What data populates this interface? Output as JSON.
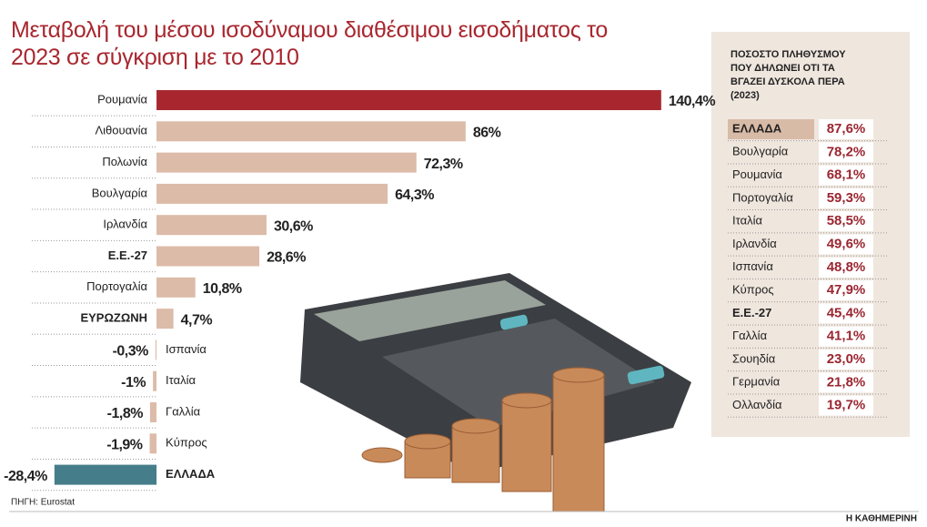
{
  "chart_data": {
    "type": "bar",
    "orientation": "horizontal",
    "title": "Μεταβολή του μέσου ισοδύναμου διαθέσιμου εισοδήματος το 2023 σε σύγκριση με το 2010",
    "categories": [
      "Ρουμανία",
      "Λιθουανία",
      "Πολωνία",
      "Βουλγαρία",
      "Ιρλανδία",
      "Ε.Ε.-27",
      "Πορτογαλία",
      "ΕΥΡΩΖΩΝΗ",
      "Ισπανία",
      "Ιταλία",
      "Γαλλία",
      "Κύπρος",
      "ΕΛΛΑΔΑ"
    ],
    "values": [
      140.4,
      86,
      72.3,
      64.3,
      30.6,
      28.6,
      10.8,
      4.7,
      -0.3,
      -1,
      -1.8,
      -1.9,
      -28.4
    ],
    "value_labels": [
      "140,4%",
      "86%",
      "72,3%",
      "64,3%",
      "30,6%",
      "28,6%",
      "10,8%",
      "4,7%",
      "-0,3%",
      "-1%",
      "-1,8%",
      "-1,9%",
      "-28,4%"
    ],
    "colors": [
      "#a8272f",
      "#dcbba8",
      "#dcbba8",
      "#dcbba8",
      "#dcbba8",
      "#dcbba8",
      "#dcbba8",
      "#dcbba8",
      "#dcbba8",
      "#dcbba8",
      "#dcbba8",
      "#dcbba8",
      "#467d8b"
    ],
    "bold": [
      5,
      7,
      12
    ],
    "xlim": [
      -40,
      145
    ]
  },
  "table": {
    "title_lines": [
      "ΠΟΣΟΣΤΟ ΠΛΗΘΥΣΜΟΥ",
      "ΠΟΥ ΔΗΛΩΝΕΙ ΟΤΙ ΤΑ",
      "ΒΓΑΖΕΙ ΔΥΣΚΟΛΑ ΠΕΡΑ",
      "(2023)"
    ],
    "rows": [
      [
        "ΕΛΛΑΔΑ",
        "87,6%"
      ],
      [
        "Βουλγαρία",
        "78,2%"
      ],
      [
        "Ρουμανία",
        "68,1%"
      ],
      [
        "Πορτογαλία",
        "59,3%"
      ],
      [
        "Ιταλία",
        "58,5%"
      ],
      [
        "Ιρλανδία",
        "49,6%"
      ],
      [
        "Ισπανία",
        "48,8%"
      ],
      [
        "Κύπρος",
        "47,9%"
      ],
      [
        "Ε.Ε.-27",
        "45,4%"
      ],
      [
        "Γαλλία",
        "41,1%"
      ],
      [
        "Σουηδία",
        "23,0%"
      ],
      [
        "Γερμανία",
        "21,8%"
      ],
      [
        "Ολλανδία",
        "19,7%"
      ]
    ],
    "highlight_row": 0,
    "bold_rows": [
      0,
      8
    ]
  },
  "source": "ΠΗΓΗ: Eurostat",
  "brand": "Η ΚΑΘΗΜΕΡΙΝΗ"
}
